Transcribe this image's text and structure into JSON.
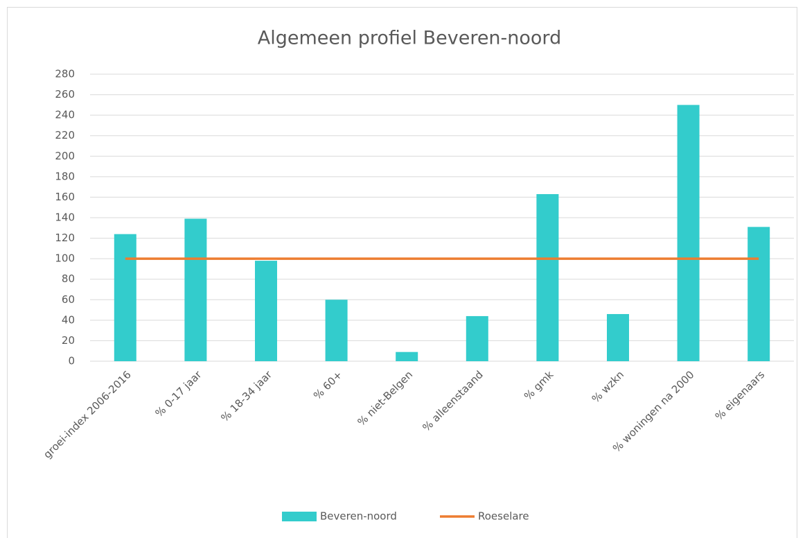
{
  "chart_data": {
    "type": "bar",
    "title": "Algemeen profiel Beveren-noord",
    "categories": [
      "groei-index 2006-2016",
      "% 0-17 jaar",
      "% 18-34 jaar",
      "% 60+",
      "% niet-Belgen",
      "% alleenstaand",
      "% gmk",
      "% wzkn",
      "% woningen na 2000",
      "% eigenaars"
    ],
    "series": [
      {
        "name": "Beveren-noord",
        "type": "bar",
        "color": "#33cccc",
        "values": [
          124,
          139,
          98,
          60,
          9,
          44,
          163,
          46,
          250,
          131
        ]
      },
      {
        "name": "Roeselare",
        "type": "line",
        "color": "#ed7d31",
        "values": [
          100,
          100,
          100,
          100,
          100,
          100,
          100,
          100,
          100,
          100
        ]
      }
    ],
    "ylim": [
      0,
      280
    ],
    "yticks": [
      0,
      20,
      40,
      60,
      80,
      100,
      120,
      140,
      160,
      180,
      200,
      220,
      240,
      260,
      280
    ],
    "grid": true,
    "legend": "bottom"
  }
}
